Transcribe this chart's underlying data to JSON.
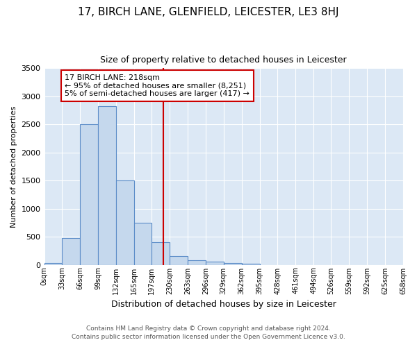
{
  "title": "17, BIRCH LANE, GLENFIELD, LEICESTER, LE3 8HJ",
  "subtitle": "Size of property relative to detached houses in Leicester",
  "xlabel": "Distribution of detached houses by size in Leicester",
  "ylabel": "Number of detached properties",
  "footer1": "Contains HM Land Registry data © Crown copyright and database right 2024.",
  "footer2": "Contains public sector information licensed under the Open Government Licence v3.0.",
  "bin_edges": [
    0,
    33,
    66,
    99,
    132,
    165,
    197,
    230,
    263,
    296,
    329,
    362,
    395,
    428,
    461,
    494,
    526,
    559,
    592,
    625,
    658
  ],
  "bin_counts": [
    25,
    470,
    2500,
    2820,
    1500,
    750,
    400,
    150,
    75,
    50,
    35,
    20,
    0,
    0,
    0,
    0,
    0,
    0,
    0,
    0
  ],
  "bar_facecolor": "#c5d8ed",
  "bar_edgecolor": "#5b8cc8",
  "vline_x": 218,
  "vline_color": "#cc0000",
  "annotation_line1": "17 BIRCH LANE: 218sqm",
  "annotation_line2": "← 95% of detached houses are smaller (8,251)",
  "annotation_line3": "5% of semi-detached houses are larger (417) →",
  "annotation_box_color": "white",
  "annotation_box_edgecolor": "#cc0000",
  "ylim": [
    0,
    3500
  ],
  "bg_color": "#dce8f5",
  "title_fontsize": 11,
  "subtitle_fontsize": 9
}
